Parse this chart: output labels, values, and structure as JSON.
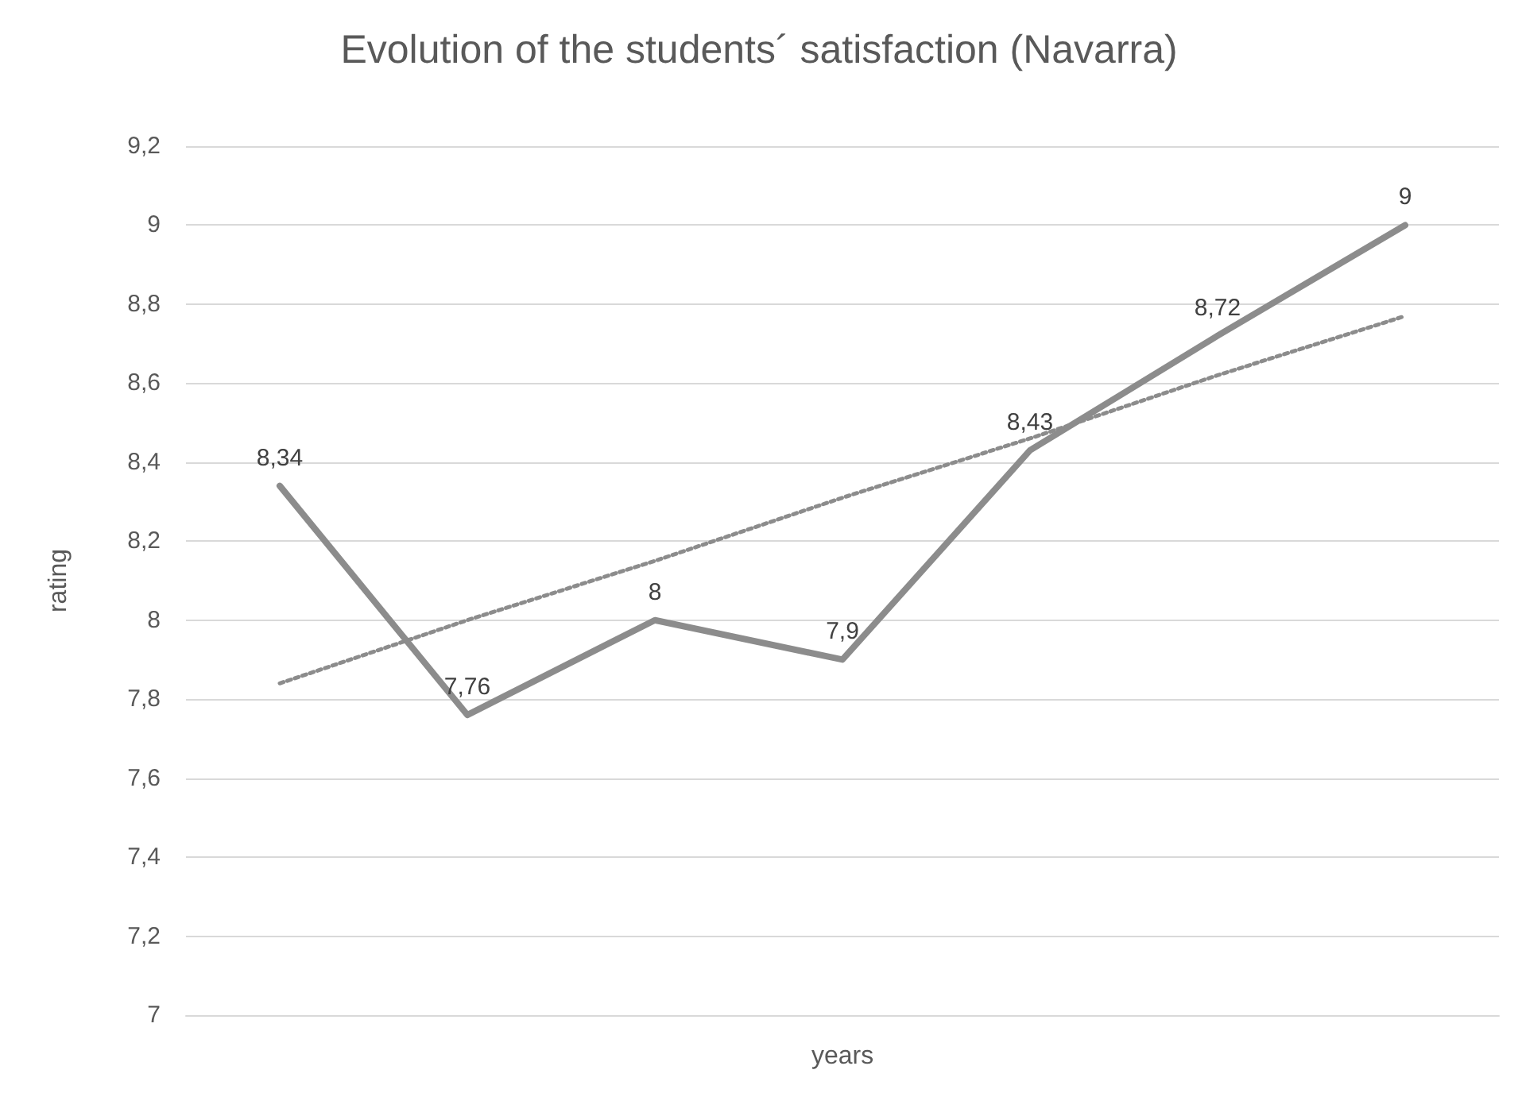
{
  "chart_data": {
    "type": "line",
    "title": "Evolution of the students´ satisfaction (Navarra)",
    "xlabel": "years",
    "ylabel": "rating",
    "categories": [
      null,
      null,
      null,
      null,
      null,
      null,
      null
    ],
    "series": [
      {
        "color": "#8c8c8c",
        "values": [
          8.34,
          7.76,
          8,
          7.9,
          8.43,
          8.72,
          9
        ],
        "value_labels": [
          "8,34",
          "7,76",
          "8",
          "7,9",
          "8,43",
          "8,72",
          "9"
        ],
        "line_style": "solid",
        "marker": "none"
      },
      {
        "color": "#8c8c8c",
        "values": [
          7.84,
          8.0,
          8.15,
          8.31,
          8.46,
          8.62,
          8.77
        ],
        "line_style": "dotted",
        "marker": "none"
      }
    ],
    "ylim": [
      7,
      9.2
    ],
    "yticks": [
      7,
      {
        "value": 7.2,
        "label": "7,2"
      },
      {
        "value": 7.4,
        "label": "7,4"
      },
      {
        "value": 7.6,
        "label": "7,6"
      },
      {
        "value": 7.8,
        "label": "7,8"
      },
      8,
      {
        "value": 8.2,
        "label": "8,2"
      },
      {
        "value": 8.4,
        "label": "8,4"
      },
      {
        "value": 8.6,
        "label": "8,6"
      },
      {
        "value": 8.8,
        "label": "8,8"
      },
      9,
      {
        "value": 9.2,
        "label": "9,2"
      }
    ],
    "grid": "y"
  }
}
